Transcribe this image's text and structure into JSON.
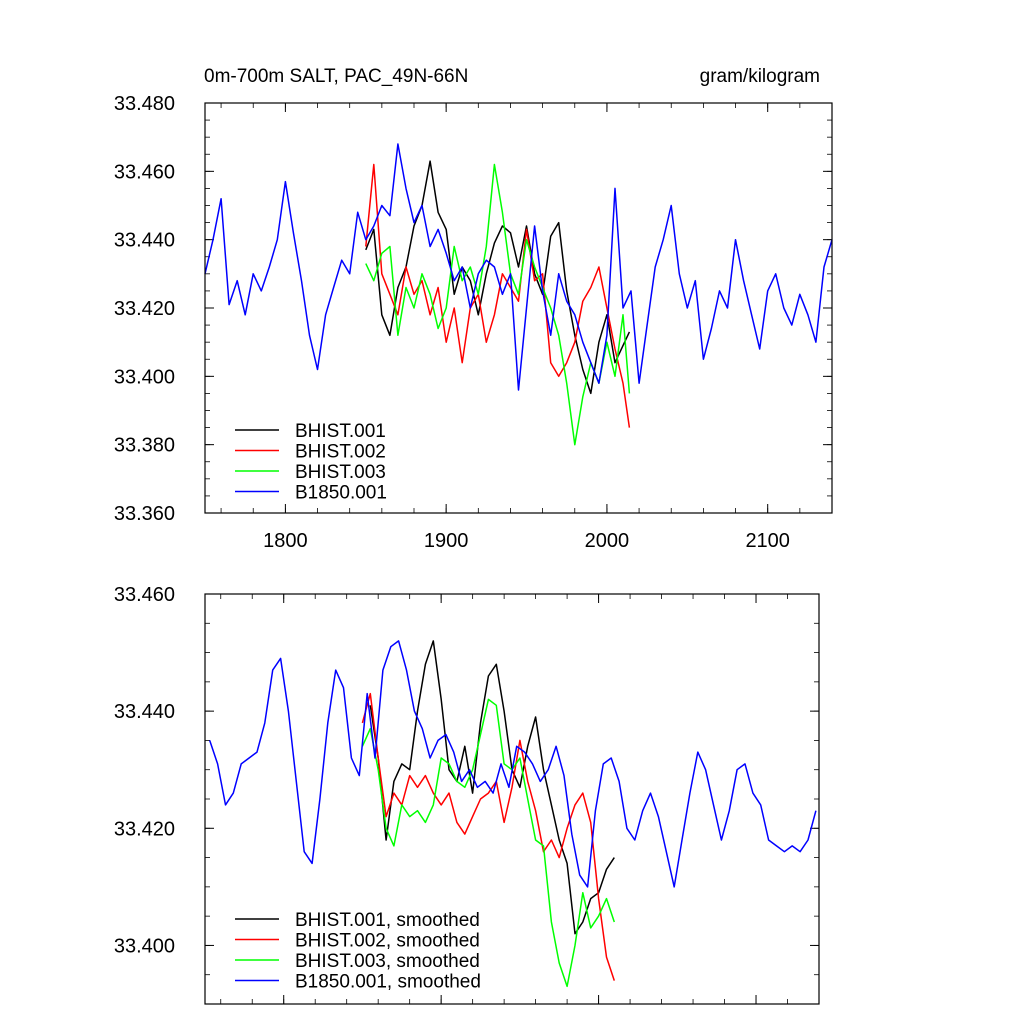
{
  "chart_data": [
    {
      "type": "line",
      "title": "0m-700m SALT, PAC_49N-66N",
      "units": "gram/kilogram",
      "xlim": [
        1750,
        2140
      ],
      "ylim": [
        33.36,
        33.48
      ],
      "x_ticks": [
        1800,
        1900,
        2000,
        2100
      ],
      "x_tick_labels": [
        "1800",
        "1900",
        "2000",
        "2100"
      ],
      "y_ticks": [
        33.36,
        33.38,
        33.4,
        33.42,
        33.44,
        33.46,
        33.48
      ],
      "y_tick_labels": [
        "33.360",
        "33.380",
        "33.400",
        "33.420",
        "33.440",
        "33.460",
        "33.480"
      ],
      "legend_position": "bottom-left",
      "series": [
        {
          "name": "BHIST.001",
          "color": "#000000",
          "x": [
            1850,
            1855,
            1860,
            1865,
            1870,
            1875,
            1880,
            1885,
            1890,
            1895,
            1900,
            1905,
            1910,
            1915,
            1920,
            1925,
            1930,
            1935,
            1940,
            1945,
            1950,
            1955,
            1960,
            1965,
            1970,
            1975,
            1980,
            1985,
            1990,
            1995,
            2000,
            2005,
            2010,
            2014
          ],
          "y": [
            33.437,
            33.443,
            33.418,
            33.412,
            33.426,
            33.432,
            33.444,
            33.45,
            33.463,
            33.448,
            33.443,
            33.424,
            33.432,
            33.428,
            33.418,
            33.43,
            33.439,
            33.444,
            33.442,
            33.432,
            33.444,
            33.43,
            33.424,
            33.441,
            33.445,
            33.425,
            33.412,
            33.402,
            33.395,
            33.41,
            33.418,
            33.404,
            33.409,
            33.413
          ]
        },
        {
          "name": "BHIST.002",
          "color": "#ff0000",
          "x": [
            1850,
            1855,
            1860,
            1865,
            1870,
            1875,
            1880,
            1885,
            1890,
            1895,
            1900,
            1905,
            1910,
            1915,
            1920,
            1925,
            1930,
            1935,
            1940,
            1945,
            1950,
            1955,
            1960,
            1965,
            1970,
            1975,
            1980,
            1985,
            1990,
            1995,
            2000,
            2005,
            2010,
            2014
          ],
          "y": [
            33.438,
            33.462,
            33.43,
            33.424,
            33.418,
            33.432,
            33.424,
            33.428,
            33.418,
            33.426,
            33.41,
            33.42,
            33.404,
            33.42,
            33.424,
            33.41,
            33.418,
            33.43,
            33.426,
            33.422,
            33.443,
            33.428,
            33.43,
            33.404,
            33.4,
            33.404,
            33.41,
            33.422,
            33.426,
            33.432,
            33.42,
            33.408,
            33.398,
            33.385
          ]
        },
        {
          "name": "BHIST.003",
          "color": "#00ff00",
          "x": [
            1850,
            1855,
            1860,
            1865,
            1870,
            1875,
            1880,
            1885,
            1890,
            1895,
            1900,
            1905,
            1910,
            1915,
            1920,
            1925,
            1930,
            1935,
            1940,
            1945,
            1950,
            1955,
            1960,
            1965,
            1970,
            1975,
            1980,
            1985,
            1990,
            1995,
            2000,
            2005,
            2010,
            2014
          ],
          "y": [
            33.433,
            33.428,
            33.436,
            33.438,
            33.412,
            33.426,
            33.42,
            33.43,
            33.424,
            33.414,
            33.42,
            33.438,
            33.428,
            33.432,
            33.424,
            33.438,
            33.462,
            33.448,
            33.43,
            33.424,
            33.44,
            33.432,
            33.426,
            33.42,
            33.412,
            33.398,
            33.38,
            33.394,
            33.404,
            33.398,
            33.41,
            33.4,
            33.418,
            33.395
          ]
        },
        {
          "name": "B1850.001",
          "color": "#0000ff",
          "x": [
            1750,
            1755,
            1760,
            1765,
            1770,
            1775,
            1780,
            1785,
            1790,
            1795,
            1800,
            1805,
            1810,
            1815,
            1820,
            1825,
            1830,
            1835,
            1840,
            1845,
            1850,
            1855,
            1860,
            1865,
            1870,
            1875,
            1880,
            1885,
            1890,
            1895,
            1900,
            1905,
            1910,
            1915,
            1920,
            1925,
            1930,
            1935,
            1940,
            1945,
            1950,
            1955,
            1960,
            1965,
            1970,
            1975,
            1980,
            1985,
            1990,
            1995,
            2000,
            2005,
            2010,
            2015,
            2020,
            2025,
            2030,
            2035,
            2040,
            2045,
            2050,
            2055,
            2060,
            2065,
            2070,
            2075,
            2080,
            2085,
            2090,
            2095,
            2100,
            2105,
            2110,
            2115,
            2120,
            2125,
            2130,
            2135,
            2140
          ],
          "y": [
            33.43,
            33.44,
            33.452,
            33.421,
            33.428,
            33.418,
            33.43,
            33.425,
            33.432,
            33.44,
            33.457,
            33.442,
            33.428,
            33.412,
            33.402,
            33.418,
            33.426,
            33.434,
            33.43,
            33.448,
            33.44,
            33.444,
            33.45,
            33.447,
            33.468,
            33.455,
            33.445,
            33.45,
            33.438,
            33.443,
            33.436,
            33.428,
            33.432,
            33.42,
            33.43,
            33.434,
            33.432,
            33.424,
            33.43,
            33.396,
            33.42,
            33.444,
            33.425,
            33.412,
            33.43,
            33.422,
            33.418,
            33.41,
            33.404,
            33.398,
            33.412,
            33.455,
            33.42,
            33.425,
            33.398,
            33.415,
            33.432,
            33.44,
            33.45,
            33.43,
            33.42,
            33.428,
            33.405,
            33.414,
            33.425,
            33.42,
            33.44,
            33.428,
            33.418,
            33.408,
            33.425,
            33.43,
            33.42,
            33.415,
            33.424,
            33.418,
            33.41,
            33.432,
            33.44
          ]
        }
      ]
    },
    {
      "type": "line",
      "title": "",
      "xlim": [
        1750,
        2140
      ],
      "ylim": [
        33.39,
        33.46
      ],
      "x_ticks": [
        1800,
        1900,
        2000,
        2100
      ],
      "y_ticks": [
        33.4,
        33.42,
        33.44,
        33.46
      ],
      "y_tick_labels": [
        "33.400",
        "33.420",
        "33.440",
        "33.460"
      ],
      "legend_position": "bottom-left",
      "series": [
        {
          "name": "BHIST.001, smoothed",
          "color": "#000000",
          "x": [
            1855,
            1860,
            1865,
            1870,
            1875,
            1880,
            1885,
            1890,
            1895,
            1900,
            1905,
            1910,
            1915,
            1920,
            1925,
            1930,
            1935,
            1940,
            1945,
            1950,
            1955,
            1960,
            1965,
            1970,
            1975,
            1980,
            1985,
            1990,
            1995,
            2000,
            2005,
            2010
          ],
          "y": [
            33.441,
            33.432,
            33.418,
            33.428,
            33.431,
            33.43,
            33.44,
            33.448,
            33.452,
            33.442,
            33.43,
            33.428,
            33.434,
            33.426,
            33.438,
            33.446,
            33.448,
            33.44,
            33.43,
            33.427,
            33.434,
            33.439,
            33.43,
            33.424,
            33.418,
            33.414,
            33.402,
            33.404,
            33.408,
            33.409,
            33.413,
            33.415
          ]
        },
        {
          "name": "BHIST.002, smoothed",
          "color": "#ff0000",
          "x": [
            1850,
            1855,
            1860,
            1865,
            1870,
            1875,
            1880,
            1885,
            1890,
            1895,
            1900,
            1905,
            1910,
            1915,
            1920,
            1925,
            1930,
            1935,
            1940,
            1945,
            1950,
            1955,
            1960,
            1965,
            1970,
            1975,
            1980,
            1985,
            1990,
            1995,
            2000,
            2005,
            2010
          ],
          "y": [
            33.438,
            33.443,
            33.432,
            33.422,
            33.426,
            33.424,
            33.429,
            33.427,
            33.429,
            33.426,
            33.424,
            33.426,
            33.421,
            33.419,
            33.422,
            33.425,
            33.426,
            33.428,
            33.421,
            33.427,
            33.435,
            33.428,
            33.423,
            33.416,
            33.418,
            33.415,
            33.42,
            33.424,
            33.426,
            33.421,
            33.408,
            33.398,
            33.394
          ]
        },
        {
          "name": "BHIST.003, smoothed",
          "color": "#00ff00",
          "x": [
            1850,
            1855,
            1860,
            1865,
            1870,
            1875,
            1880,
            1885,
            1890,
            1895,
            1900,
            1905,
            1910,
            1915,
            1920,
            1925,
            1930,
            1935,
            1940,
            1945,
            1950,
            1955,
            1960,
            1965,
            1970,
            1975,
            1980,
            1985,
            1990,
            1995,
            2000,
            2005,
            2010
          ],
          "y": [
            33.434,
            33.437,
            33.43,
            33.42,
            33.417,
            33.424,
            33.422,
            33.423,
            33.421,
            33.424,
            33.432,
            33.431,
            33.428,
            33.427,
            33.43,
            33.436,
            33.442,
            33.441,
            33.431,
            33.43,
            33.432,
            33.425,
            33.418,
            33.417,
            33.404,
            33.397,
            33.393,
            33.4,
            33.409,
            33.403,
            33.405,
            33.408,
            33.404
          ]
        },
        {
          "name": "B1850.001, smoothed",
          "color": "#0000ff",
          "x": [
            1753,
            1758,
            1763,
            1768,
            1773,
            1778,
            1783,
            1788,
            1793,
            1798,
            1803,
            1808,
            1813,
            1818,
            1823,
            1828,
            1833,
            1838,
            1843,
            1848,
            1853,
            1858,
            1863,
            1868,
            1873,
            1878,
            1883,
            1888,
            1893,
            1898,
            1903,
            1908,
            1913,
            1918,
            1923,
            1928,
            1933,
            1938,
            1943,
            1948,
            1953,
            1958,
            1963,
            1968,
            1973,
            1978,
            1983,
            1988,
            1993,
            1998,
            2003,
            2008,
            2013,
            2018,
            2023,
            2028,
            2033,
            2038,
            2043,
            2048,
            2053,
            2058,
            2063,
            2068,
            2073,
            2078,
            2083,
            2088,
            2093,
            2098,
            2103,
            2108,
            2113,
            2118,
            2123,
            2128,
            2133,
            2138
          ],
          "y": [
            33.435,
            33.431,
            33.424,
            33.426,
            33.431,
            33.432,
            33.433,
            33.438,
            33.447,
            33.449,
            33.44,
            33.428,
            33.416,
            33.414,
            33.425,
            33.438,
            33.447,
            33.444,
            33.432,
            33.429,
            33.443,
            33.432,
            33.447,
            33.451,
            33.452,
            33.447,
            33.44,
            33.437,
            33.432,
            33.435,
            33.436,
            33.433,
            33.428,
            33.43,
            33.427,
            33.428,
            33.426,
            33.431,
            33.427,
            33.434,
            33.433,
            33.431,
            33.428,
            33.43,
            33.434,
            33.429,
            33.419,
            33.412,
            33.41,
            33.423,
            33.431,
            33.432,
            33.428,
            33.42,
            33.418,
            33.423,
            33.426,
            33.422,
            33.416,
            33.41,
            33.418,
            33.426,
            33.433,
            33.43,
            33.424,
            33.418,
            33.423,
            33.43,
            33.431,
            33.426,
            33.424,
            33.418,
            33.417,
            33.416,
            33.417,
            33.416,
            33.418,
            33.423
          ]
        }
      ]
    }
  ]
}
